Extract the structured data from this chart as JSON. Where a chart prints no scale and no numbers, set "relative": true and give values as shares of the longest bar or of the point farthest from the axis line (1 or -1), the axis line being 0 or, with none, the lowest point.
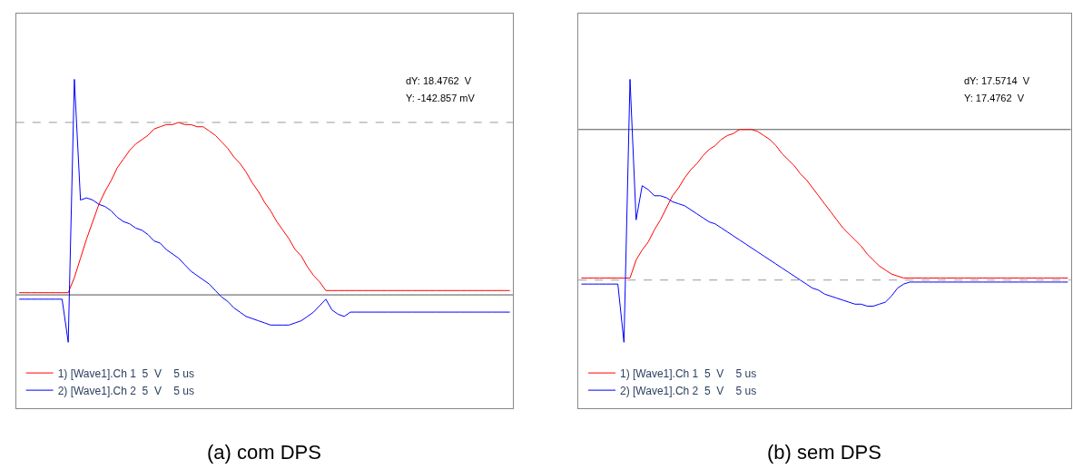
{
  "chart_data": [
    {
      "type": "line",
      "title": "(a) com DPS",
      "relative": true,
      "legend": "bottom left",
      "line_style": "solid",
      "marker": "none",
      "categories": [
        null,
        null,
        null,
        null,
        null,
        null,
        null,
        null,
        null,
        null,
        null,
        null,
        null,
        null,
        null,
        null,
        null,
        null,
        null,
        null,
        null,
        null,
        null,
        null,
        null,
        null,
        null,
        null,
        null,
        null,
        null,
        null,
        null,
        null,
        null,
        null,
        null,
        null,
        null,
        null,
        null,
        null,
        null,
        null,
        null,
        null,
        null,
        null,
        null,
        null,
        null,
        null,
        null,
        null,
        null,
        null,
        null,
        null,
        null,
        null,
        null,
        null,
        null,
        null,
        null,
        null,
        null,
        null,
        null,
        null,
        null,
        null,
        null,
        null,
        null,
        null,
        null,
        null,
        null,
        null,
        null
      ],
      "series": [
        {
          "name": "1) [Wave1].Ch 1  5  V    5 us",
          "color": "#ff0000",
          "values": [
            0.01,
            0.01,
            0.01,
            0.01,
            0.01,
            0.01,
            0.01,
            0.01,
            0.01,
            0.08,
            0.17,
            0.26,
            0.34,
            0.42,
            0.48,
            0.53,
            0.59,
            0.63,
            0.67,
            0.7,
            0.72,
            0.74,
            0.77,
            0.78,
            0.79,
            0.79,
            0.8,
            0.79,
            0.79,
            0.78,
            0.78,
            0.76,
            0.74,
            0.71,
            0.68,
            0.64,
            0.61,
            0.57,
            0.52,
            0.48,
            0.43,
            0.39,
            0.34,
            0.3,
            0.26,
            0.21,
            0.18,
            0.13,
            0.09,
            0.06,
            0.02,
            0.02,
            0.02,
            0.02,
            0.02,
            0.02,
            0.02,
            0.02,
            0.02,
            0.02,
            0.02,
            0.02,
            0.02,
            0.02,
            0.02,
            0.02,
            0.02,
            0.02,
            0.02,
            0.02,
            0.02,
            0.02,
            0.02,
            0.02,
            0.02,
            0.02,
            0.02,
            0.02,
            0.02,
            0.02,
            0.02
          ]
        },
        {
          "name": "2) [Wave1].Ch 2  5  V    5 us",
          "color": "#0000ff",
          "values": [
            -0.02,
            -0.02,
            -0.02,
            -0.02,
            -0.02,
            -0.02,
            -0.02,
            -0.02,
            -0.22,
            1.0,
            0.44,
            0.45,
            0.44,
            0.42,
            0.41,
            0.39,
            0.36,
            0.34,
            0.33,
            0.31,
            0.3,
            0.28,
            0.25,
            0.24,
            0.21,
            0.19,
            0.17,
            0.14,
            0.11,
            0.09,
            0.07,
            0.05,
            0.02,
            -0.01,
            -0.03,
            -0.06,
            -0.08,
            -0.1,
            -0.11,
            -0.12,
            -0.13,
            -0.14,
            -0.14,
            -0.14,
            -0.14,
            -0.13,
            -0.12,
            -0.1,
            -0.08,
            -0.05,
            -0.02,
            -0.07,
            -0.09,
            -0.1,
            -0.08,
            -0.08,
            -0.08,
            -0.08,
            -0.08,
            -0.08,
            -0.08,
            -0.08,
            -0.08,
            -0.08,
            -0.08,
            -0.08,
            -0.08,
            -0.08,
            -0.08,
            -0.08,
            -0.08,
            -0.08,
            -0.08,
            -0.08,
            -0.08,
            -0.08,
            -0.08,
            -0.08,
            -0.08,
            -0.08,
            -0.08
          ]
        }
      ],
      "ref_lines": [
        {
          "axis": "y",
          "value": 0.8,
          "color": "#999999",
          "line_style": "dashed"
        },
        {
          "axis": "y",
          "value": 0,
          "color": "#555555",
          "line_style": "solid"
        }
      ],
      "annotations": [
        "dY: 18.4762  V",
        "Y: -142.857 mV"
      ]
    },
    {
      "type": "line",
      "title": "(b) sem DPS",
      "relative": true,
      "legend": "bottom left",
      "line_style": "solid",
      "marker": "none",
      "categories": [
        null,
        null,
        null,
        null,
        null,
        null,
        null,
        null,
        null,
        null,
        null,
        null,
        null,
        null,
        null,
        null,
        null,
        null,
        null,
        null,
        null,
        null,
        null,
        null,
        null,
        null,
        null,
        null,
        null,
        null,
        null,
        null,
        null,
        null,
        null,
        null,
        null,
        null,
        null,
        null,
        null,
        null,
        null,
        null,
        null,
        null,
        null,
        null,
        null,
        null,
        null,
        null,
        null,
        null,
        null,
        null,
        null,
        null,
        null,
        null,
        null,
        null,
        null,
        null,
        null,
        null,
        null,
        null,
        null,
        null,
        null,
        null,
        null,
        null,
        null,
        null,
        null,
        null,
        null,
        null,
        null
      ],
      "series": [
        {
          "name": "1) [Wave1].Ch 1  5  V    5 us",
          "color": "#ff0000",
          "values": [
            0.01,
            0.01,
            0.01,
            0.01,
            0.01,
            0.01,
            0.01,
            0.01,
            0.01,
            0.1,
            0.15,
            0.19,
            0.25,
            0.3,
            0.36,
            0.42,
            0.46,
            0.51,
            0.55,
            0.58,
            0.62,
            0.65,
            0.67,
            0.7,
            0.72,
            0.73,
            0.75,
            0.75,
            0.75,
            0.74,
            0.72,
            0.7,
            0.67,
            0.63,
            0.6,
            0.57,
            0.53,
            0.5,
            0.46,
            0.42,
            0.38,
            0.34,
            0.3,
            0.26,
            0.23,
            0.2,
            0.17,
            0.13,
            0.1,
            0.07,
            0.05,
            0.03,
            0.02,
            0.01,
            0.01,
            0.01,
            0.01,
            0.01,
            0.01,
            0.01,
            0.01,
            0.01,
            0.01,
            0.01,
            0.01,
            0.01,
            0.01,
            0.01,
            0.01,
            0.01,
            0.01,
            0.01,
            0.01,
            0.01,
            0.01,
            0.01,
            0.01,
            0.01,
            0.01,
            0.01,
            0.01
          ]
        },
        {
          "name": "2) [Wave1].Ch 2  5  V    5 us",
          "color": "#0000ff",
          "values": [
            -0.02,
            -0.02,
            -0.02,
            -0.02,
            -0.02,
            -0.02,
            -0.02,
            -0.31,
            1.0,
            0.3,
            0.47,
            0.45,
            0.42,
            0.42,
            0.41,
            0.39,
            0.38,
            0.37,
            0.35,
            0.33,
            0.31,
            0.29,
            0.28,
            0.26,
            0.24,
            0.22,
            0.2,
            0.18,
            0.16,
            0.14,
            0.12,
            0.1,
            0.08,
            0.06,
            0.04,
            0.02,
            0.0,
            -0.02,
            -0.04,
            -0.05,
            -0.07,
            -0.08,
            -0.09,
            -0.1,
            -0.11,
            -0.12,
            -0.12,
            -0.13,
            -0.13,
            -0.12,
            -0.11,
            -0.08,
            -0.04,
            -0.02,
            -0.01,
            -0.01,
            -0.01,
            -0.01,
            -0.01,
            -0.01,
            -0.01,
            -0.01,
            -0.01,
            -0.01,
            -0.01,
            -0.01,
            -0.01,
            -0.01,
            -0.01,
            -0.01,
            -0.01,
            -0.01,
            -0.01,
            -0.01,
            -0.01,
            -0.01,
            -0.01,
            -0.01,
            -0.01,
            -0.01,
            -0.01
          ]
        }
      ],
      "ref_lines": [
        {
          "axis": "y",
          "value": 0.75,
          "color": "#555555",
          "line_style": "solid"
        },
        {
          "axis": "y",
          "value": 0,
          "color": "#999999",
          "line_style": "dashed"
        }
      ],
      "annotations": [
        "dY: 17.5714  V",
        "Y: 17.4762  V"
      ]
    }
  ]
}
